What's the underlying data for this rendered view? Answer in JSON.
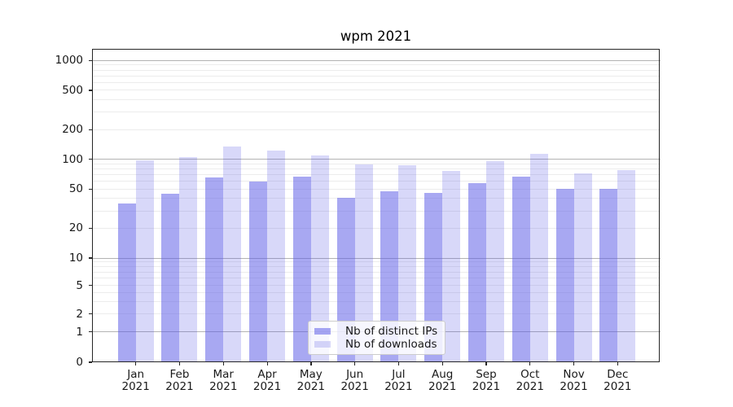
{
  "title": "wpm 2021",
  "chart_data": {
    "type": "bar",
    "title": "wpm 2021",
    "categories": [
      "Jan 2021",
      "Feb 2021",
      "Mar 2021",
      "Apr 2021",
      "May 2021",
      "Jun 2021",
      "Jul 2021",
      "Aug 2021",
      "Sep 2021",
      "Oct 2021",
      "Nov 2021",
      "Dec 2021"
    ],
    "series": [
      {
        "name": "Nb of distinct IPs",
        "color": "rgba(88,88,230,0.52)",
        "values": [
          36,
          45,
          66,
          60,
          67,
          41,
          47,
          46,
          57,
          67,
          50,
          50
        ]
      },
      {
        "name": "Nb of downloads",
        "color": "rgba(88,88,230,0.23)",
        "values": [
          98,
          106,
          136,
          122,
          110,
          88,
          87,
          76,
          96,
          114,
          72,
          78
        ]
      }
    ],
    "y_axis": {
      "scale": "symlog",
      "ticks": [
        0,
        1,
        2,
        5,
        10,
        20,
        50,
        100,
        200,
        500,
        1000
      ],
      "major_gridlines": [
        1,
        10,
        100,
        1000
      ],
      "minor_gridlines": [
        2,
        3,
        4,
        5,
        6,
        7,
        8,
        9,
        20,
        30,
        40,
        50,
        60,
        70,
        80,
        90,
        200,
        300,
        400,
        500,
        600,
        700,
        800,
        900
      ],
      "range": [
        0,
        1500
      ]
    },
    "x_axis": {
      "label_line2": "2021"
    },
    "legend": {
      "position": "lower center",
      "entries": [
        "Nb of distinct IPs",
        "Nb of downloads"
      ]
    },
    "grid": true
  },
  "colors": {
    "grid_minor": "#ececec",
    "grid_major": "#b3b3b3",
    "spine": "#262626",
    "text": "#191919",
    "legend_border": "#cccccc",
    "legend_background": "rgba(255,255,255,0.8)"
  }
}
